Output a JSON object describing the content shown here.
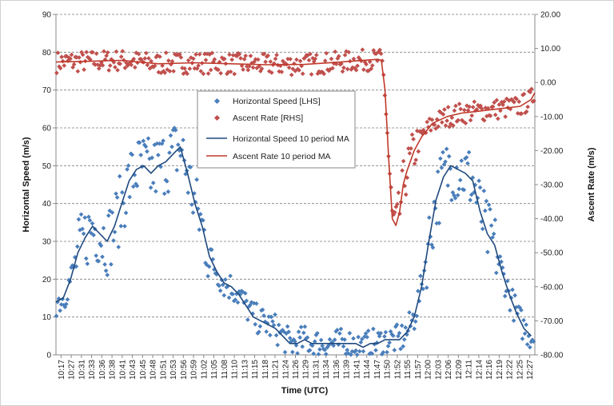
{
  "chart_data": {
    "type": "line",
    "title": "",
    "xlabel": "Time (UTC)",
    "ylabel_left": "Horizontal Speed (m/s)",
    "ylabel_right": "Ascent Rate (m/s)",
    "ylim_left": [
      0,
      90
    ],
    "ylim_right": [
      -80,
      20
    ],
    "left_ticks": [
      "0",
      "10",
      "20",
      "30",
      "40",
      "50",
      "60",
      "70",
      "80",
      "90"
    ],
    "right_ticks": [
      "-80.00",
      "-70.00",
      "-60.00",
      "-50.00",
      "-40.00",
      "-30.00",
      "-20.00",
      "-10.00",
      "0.00",
      "10.00",
      "20.00"
    ],
    "x_tick_labels": [
      "10:17",
      "10:27",
      "10:31",
      "10:33",
      "10:36",
      "10:38",
      "10:41",
      "10:43",
      "10:45",
      "10:48",
      "10:51",
      "10:53",
      "10:56",
      "10:59",
      "11:02",
      "11:05",
      "11:08",
      "11:10",
      "11:13",
      "11:15",
      "11:18",
      "11:21",
      "11:24",
      "11:26",
      "11:29",
      "11:31",
      "11:34",
      "11:36",
      "11:39",
      "11:41",
      "11:44",
      "11:47",
      "11:50",
      "11:52",
      "11:55",
      "11:57",
      "12:00",
      "12:03",
      "12:06",
      "12:09",
      "12:11",
      "12:14",
      "12:16",
      "12:19",
      "12:22",
      "12:25",
      "12:27"
    ],
    "x_range_minutes": [
      "10:17",
      "12:28"
    ],
    "grid": "horizontal",
    "legend": {
      "placement": "center",
      "entries": [
        "Horizontal Speed [LHS]",
        "Ascent Rate [RHS]",
        "Horizontal Speed 10 period MA",
        "Ascent Rate 10 period MA"
      ]
    },
    "colors": {
      "speed_points": "#4a7ebb",
      "ascent_points": "#c0504d",
      "speed_ma": "#1f497d",
      "ascent_ma": "#c0392b"
    },
    "series": [
      {
        "name": "Horizontal Speed 10 period MA",
        "axis": "left",
        "x": [
          "10:17",
          "10:19",
          "10:21",
          "10:23",
          "10:25",
          "10:27",
          "10:29",
          "10:31",
          "10:33",
          "10:35",
          "10:37",
          "10:39",
          "10:41",
          "10:43",
          "10:45",
          "10:47",
          "10:49",
          "10:51",
          "10:53",
          "10:55",
          "10:57",
          "10:59",
          "11:01",
          "11:03",
          "11:05",
          "11:07",
          "11:09",
          "11:11",
          "11:13",
          "11:15",
          "11:17",
          "11:19",
          "11:21",
          "11:23",
          "11:25",
          "11:27",
          "11:29",
          "11:31",
          "11:33",
          "11:35",
          "11:37",
          "11:39",
          "11:41",
          "11:43",
          "11:45",
          "11:47",
          "11:49",
          "11:51",
          "11:53",
          "11:55",
          "11:57",
          "11:59",
          "12:01",
          "12:03",
          "12:05",
          "12:07",
          "12:09",
          "12:11",
          "12:13",
          "12:15",
          "12:17",
          "12:19",
          "12:21",
          "12:23",
          "12:25",
          "12:27"
        ],
        "values": [
          14,
          15,
          20,
          27,
          31,
          34,
          32,
          30,
          34,
          40,
          46,
          49,
          50,
          48,
          50,
          51,
          53,
          55,
          48,
          40,
          34,
          26,
          22,
          19,
          18,
          16,
          13,
          10,
          9,
          8,
          7,
          5,
          3,
          3,
          4,
          3,
          3,
          3,
          3,
          3,
          3,
          3,
          2,
          3,
          3,
          4,
          4,
          4,
          6,
          10,
          18,
          30,
          41,
          47,
          50,
          49,
          48,
          46,
          38,
          32,
          29,
          22,
          16,
          11,
          7,
          5
        ]
      },
      {
        "name": "Ascent Rate 10 period MA",
        "axis": "right",
        "x": [
          "10:17",
          "10:25",
          "10:35",
          "10:45",
          "10:55",
          "11:05",
          "11:15",
          "11:25",
          "11:35",
          "11:45",
          "11:46",
          "11:47",
          "11:48",
          "11:49",
          "11:50",
          "11:51",
          "11:52",
          "11:53",
          "11:55",
          "11:57",
          "12:00",
          "12:04",
          "12:08",
          "12:12",
          "12:16",
          "12:20",
          "12:24",
          "12:27",
          "12:28"
        ],
        "values": [
          6.0,
          6.2,
          6.5,
          5.5,
          5.8,
          5.5,
          5.2,
          5.3,
          6.0,
          6.8,
          6.5,
          -2,
          -22,
          -40,
          -42,
          -38,
          -30,
          -26,
          -20,
          -16,
          -12,
          -10,
          -9,
          -8.5,
          -8,
          -7.5,
          -7,
          -5,
          -3
        ]
      }
    ]
  }
}
